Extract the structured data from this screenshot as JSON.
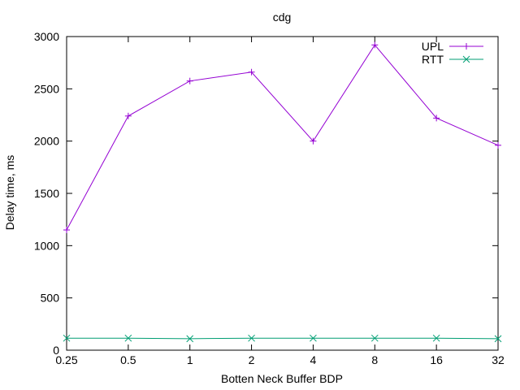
{
  "chart_data": {
    "type": "line",
    "title": "cdg",
    "xlabel": "Botten Neck Buffer BDP",
    "ylabel": "Delay time, ms",
    "categories": [
      "0.25",
      "0.5",
      "1",
      "2",
      "4",
      "8",
      "16",
      "32"
    ],
    "yticks": [
      "0",
      "500",
      "1000",
      "1500",
      "2000",
      "2500",
      "3000"
    ],
    "ylim": [
      0,
      3000
    ],
    "grid": false,
    "legend_position": "top-right",
    "series": [
      {
        "name": "UPL",
        "color": "#9400d3",
        "marker": "plus",
        "values": [
          1150,
          2240,
          2575,
          2660,
          2000,
          2920,
          2220,
          1960
        ]
      },
      {
        "name": "RTT",
        "color": "#009e73",
        "marker": "cross",
        "values": [
          115,
          115,
          110,
          115,
          115,
          115,
          115,
          110
        ]
      }
    ]
  }
}
